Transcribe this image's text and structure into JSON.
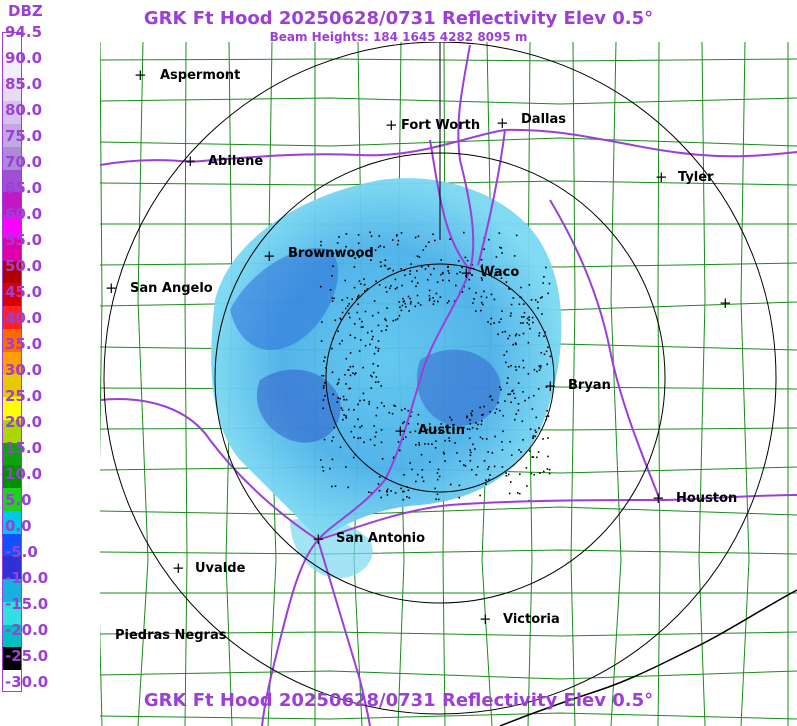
{
  "header": {
    "title": "GRK Ft Hood 20250628/0731 Reflectivity Elev 0.5°",
    "subtitle": "Beam Heights: 184 1645 4282 8095 m",
    "footer": "GRK Ft Hood 20250628/0731 Reflectivity Elev 0.5°"
  },
  "legend": {
    "units": "DBZ",
    "labels": [
      "94.5",
      "90.0",
      "85.0",
      "80.0",
      "75.0",
      "70.0",
      "65.0",
      "60.0",
      "55.0",
      "50.0",
      "45.0",
      "40.0",
      "35.0",
      "30.0",
      "25.0",
      "20.0",
      "15.0",
      "10.0",
      "5.0",
      "0.0",
      "-5.0",
      "-10.0",
      "-15.0",
      "-20.0",
      "-25.0",
      "-30.0"
    ],
    "colors": [
      "#ffffff",
      "#f4eefb",
      "#e7dcf4",
      "#d6c2ec",
      "#c3a7e3",
      "#ad8ad8",
      "#9f4fd6",
      "#c018c5",
      "#ff00ff",
      "#e000a8",
      "#b00000",
      "#d80000",
      "#ff2020",
      "#ff6a00",
      "#ff9e00",
      "#e8c800",
      "#ffff00",
      "#a8d800",
      "#10a010",
      "#009000",
      "#20d020",
      "#00c8e8",
      "#1050ff",
      "#3030d8",
      "#18b0e0",
      "#30e0e0",
      "#00c0c0",
      "#000000",
      "#ffffff"
    ]
  },
  "map": {
    "radar_site": "Ft Hood",
    "cities": [
      {
        "name": "Aspermont",
        "marker": true
      },
      {
        "name": "Abilene",
        "marker": true
      },
      {
        "name": "Fort Worth",
        "marker": true
      },
      {
        "name": "Dallas",
        "marker": true
      },
      {
        "name": "Tyler",
        "marker": true
      },
      {
        "name": "Brownwood",
        "marker": true
      },
      {
        "name": "Waco",
        "marker": true
      },
      {
        "name": "San Angelo",
        "marker": true
      },
      {
        "name": "Bryan",
        "marker": true
      },
      {
        "name": "Austin",
        "marker": true
      },
      {
        "name": "Houston",
        "marker": true
      },
      {
        "name": "San Antonio",
        "marker": true
      },
      {
        "name": "Uvalde",
        "marker": true
      },
      {
        "name": "Victoria",
        "marker": true
      },
      {
        "name": "Piedras Negras",
        "marker": false
      },
      {
        "name": "",
        "marker": true
      }
    ],
    "colors": {
      "title": "#9b3fd6",
      "counties": "#1a8a1a",
      "highways": "#9b3fd6",
      "range_rings": "#000000",
      "echo_light": "#6ed8f0",
      "echo_mid": "#3a9be0",
      "echo_dark": "#2c54c8",
      "echo_speckle": "#000000"
    }
  }
}
